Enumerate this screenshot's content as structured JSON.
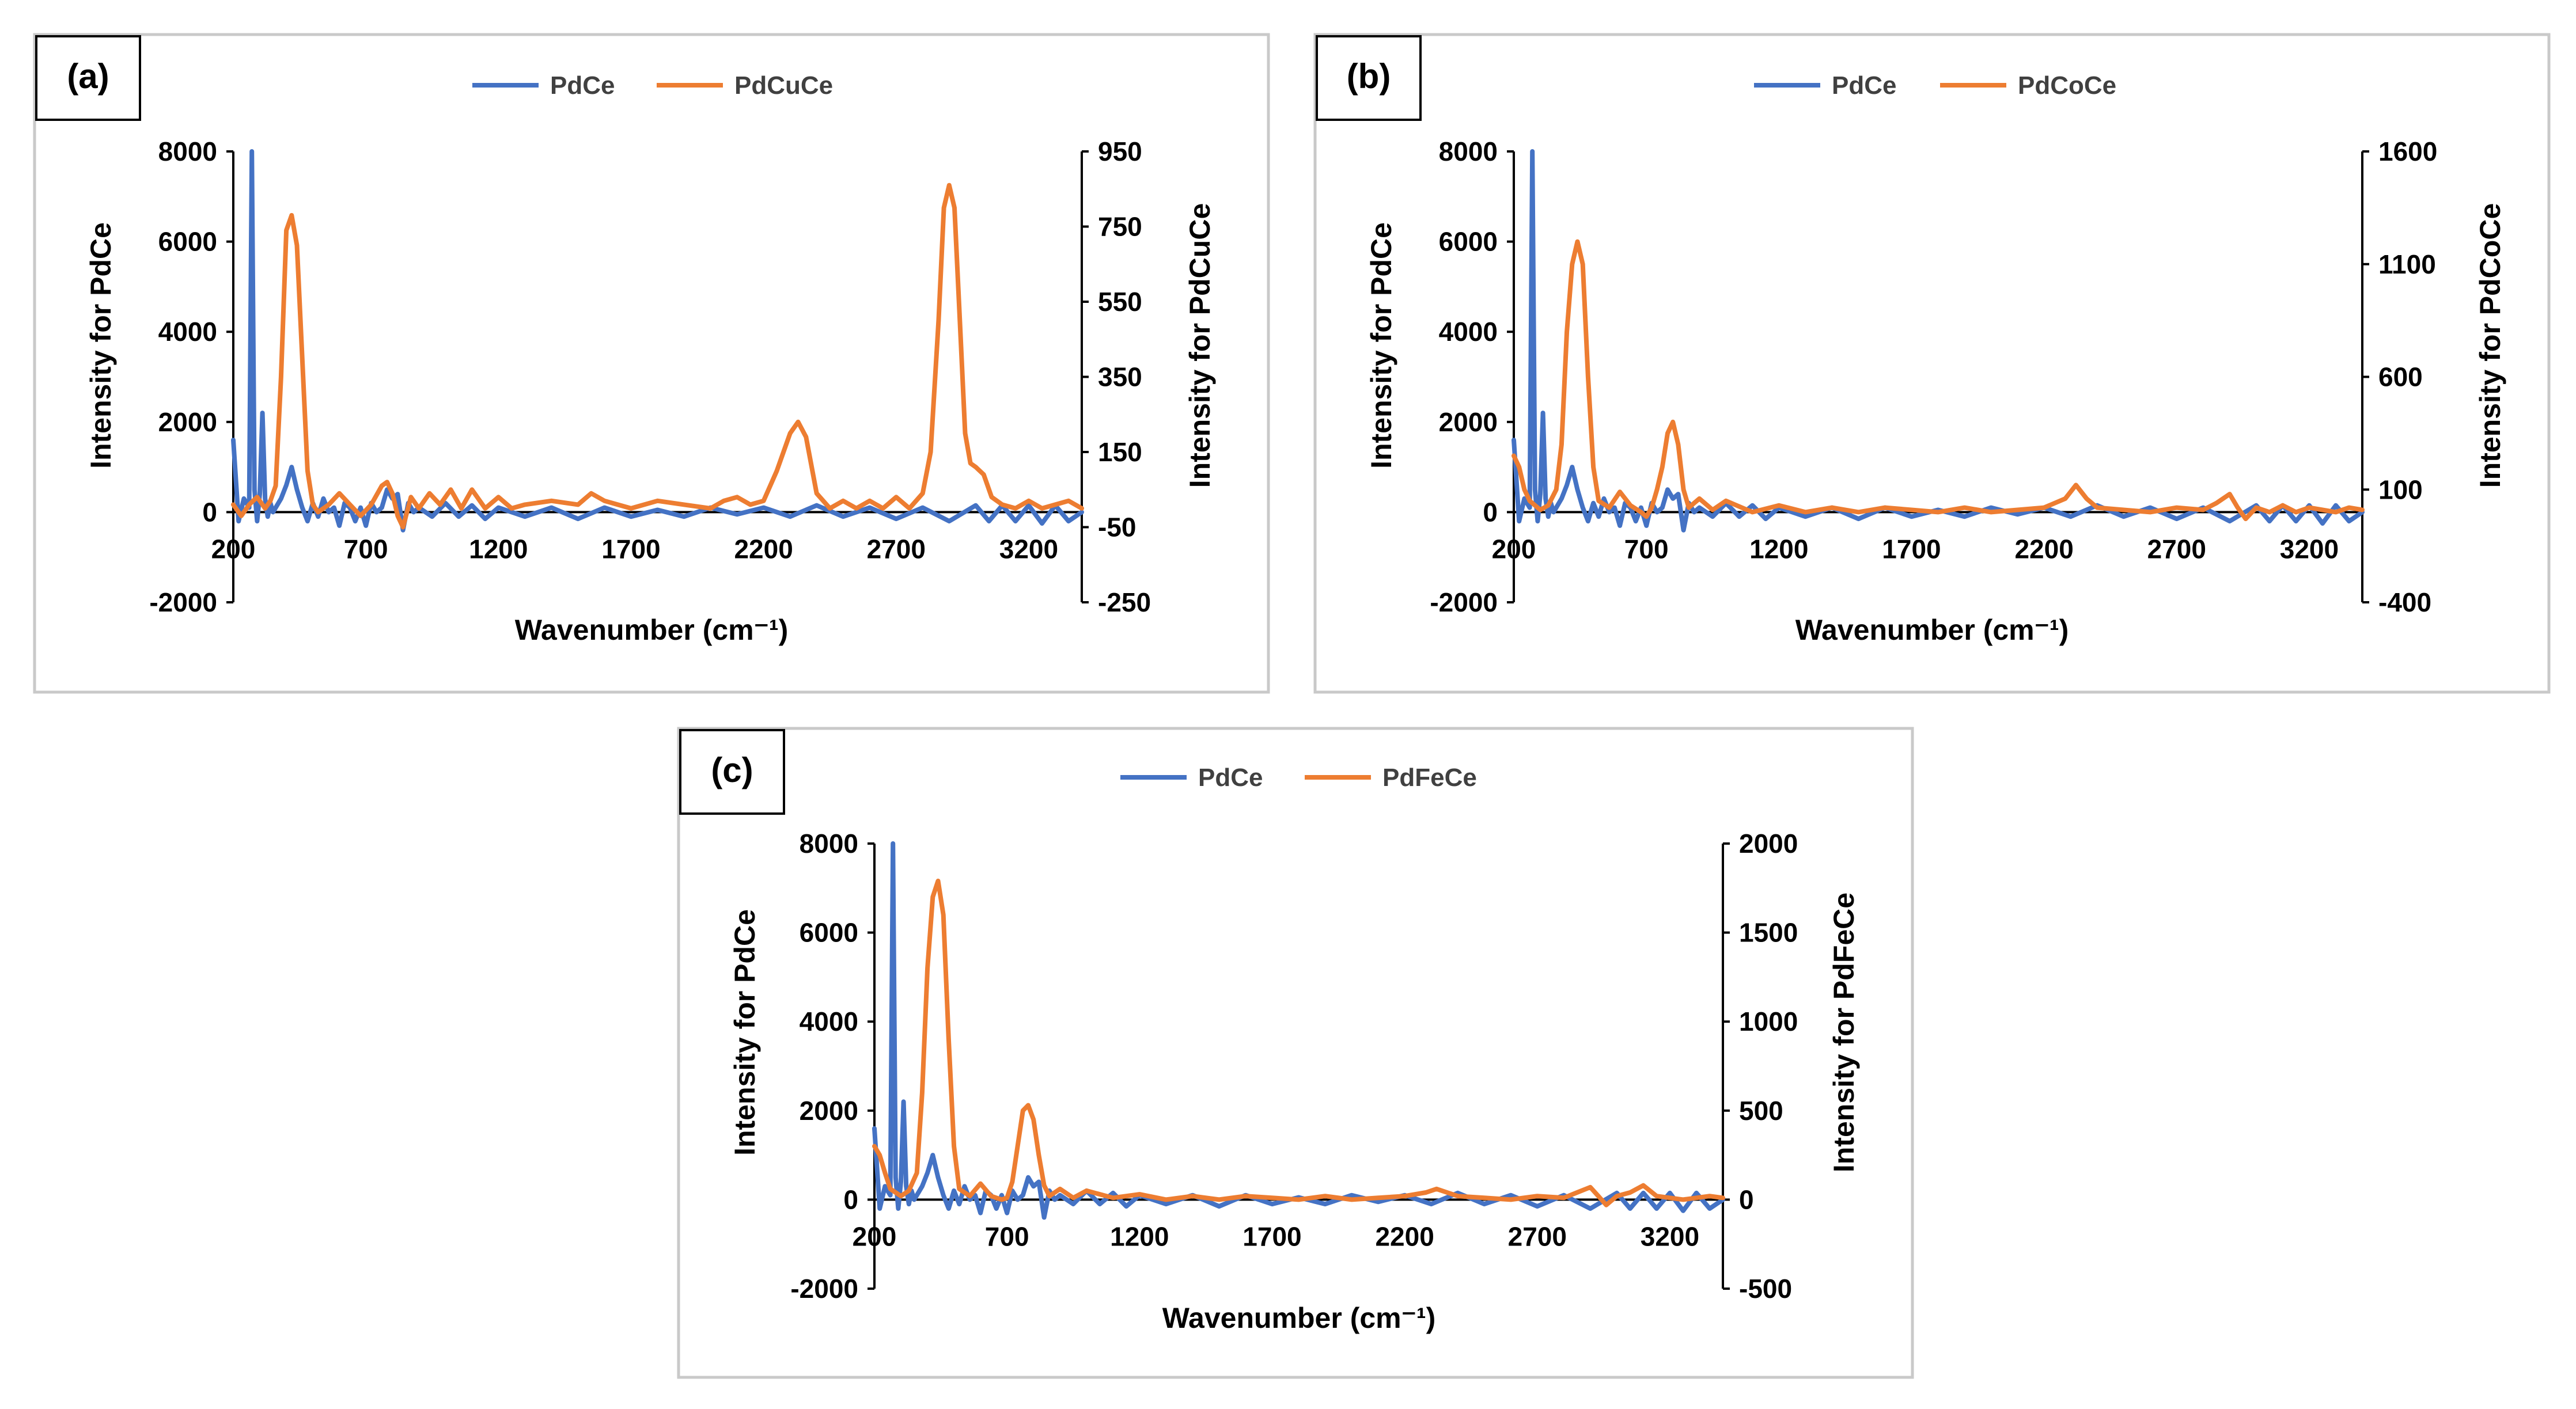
{
  "figure": {
    "description_none": ""
  },
  "chart_data": [
    {
      "type": "line",
      "panel_label": "(a)",
      "title": "",
      "xlabel": "Wavenumber (cm⁻¹)",
      "ylabel_left": "Intensity for PdCe",
      "ylabel_right": "Intensity for PdCuCe",
      "xlim": [
        200,
        3400
      ],
      "ylim_left": [
        -2000,
        8000
      ],
      "ylim_right": [
        -250,
        950
      ],
      "x_ticks": [
        200,
        700,
        1200,
        1700,
        2200,
        2700,
        3200
      ],
      "x_tick_labels": [
        "200",
        "700",
        "1200",
        "1700",
        "2200",
        "2700",
        "3200"
      ],
      "y_left_ticks": [
        8000,
        6000,
        4000,
        2000,
        0,
        -2000
      ],
      "y_left_tick_labels": [
        "8000",
        "6000",
        "4000",
        "2000",
        "0",
        "-2000"
      ],
      "y_right_ticks": [
        950,
        750,
        550,
        350,
        150,
        -50,
        -250
      ],
      "y_right_tick_labels": [
        "950",
        "750",
        "550",
        "350",
        "150",
        "-50",
        "-250"
      ],
      "legend_position": "top-center",
      "grid": false,
      "series": [
        {
          "name": "PdCe",
          "axis": "left",
          "color": "#4472c4",
          "x": [
            200,
            220,
            240,
            260,
            270,
            280,
            290,
            300,
            310,
            320,
            330,
            340,
            350,
            360,
            380,
            400,
            420,
            440,
            460,
            480,
            500,
            520,
            540,
            560,
            580,
            600,
            620,
            640,
            660,
            680,
            700,
            720,
            740,
            760,
            780,
            800,
            820,
            840,
            860,
            880,
            900,
            950,
            1000,
            1050,
            1100,
            1150,
            1200,
            1300,
            1400,
            1500,
            1600,
            1700,
            1800,
            1900,
            2000,
            2100,
            2200,
            2300,
            2400,
            2500,
            2600,
            2700,
            2800,
            2900,
            3000,
            3050,
            3100,
            3150,
            3200,
            3250,
            3300,
            3350,
            3400
          ],
          "values": [
            1600,
            -200,
            300,
            100,
            8000,
            500,
            -200,
            400,
            2200,
            300,
            -100,
            200,
            0,
            100,
            300,
            600,
            1000,
            500,
            100,
            -200,
            200,
            -100,
            300,
            0,
            100,
            -300,
            200,
            100,
            -200,
            100,
            -300,
            200,
            0,
            100,
            500,
            300,
            400,
            -400,
            200,
            0,
            100,
            -100,
            200,
            -100,
            150,
            -150,
            100,
            -100,
            100,
            -150,
            100,
            -100,
            50,
            -100,
            100,
            -50,
            100,
            -100,
            150,
            -100,
            100,
            -150,
            100,
            -200,
            150,
            -200,
            150,
            -200,
            150,
            -250,
            150,
            -200,
            0
          ]
        },
        {
          "name": "PdCuCe",
          "axis": "right",
          "color": "#ed7d31",
          "x": [
            200,
            230,
            260,
            290,
            320,
            340,
            360,
            380,
            400,
            420,
            440,
            460,
            480,
            500,
            520,
            560,
            600,
            640,
            680,
            720,
            760,
            780,
            800,
            820,
            840,
            870,
            900,
            940,
            980,
            1020,
            1060,
            1100,
            1150,
            1200,
            1250,
            1300,
            1400,
            1500,
            1550,
            1600,
            1650,
            1700,
            1800,
            1900,
            2000,
            2050,
            2100,
            2150,
            2200,
            2250,
            2300,
            2330,
            2360,
            2400,
            2450,
            2500,
            2550,
            2600,
            2650,
            2700,
            2750,
            2800,
            2830,
            2860,
            2880,
            2900,
            2920,
            2940,
            2960,
            2980,
            3000,
            3030,
            3060,
            3100,
            3150,
            3200,
            3250,
            3300,
            3350,
            3400
          ],
          "values": [
            10,
            -20,
            10,
            30,
            0,
            20,
            60,
            350,
            740,
            780,
            700,
            400,
            100,
            10,
            -10,
            10,
            40,
            10,
            -20,
            10,
            60,
            70,
            40,
            -20,
            -50,
            30,
            0,
            40,
            10,
            50,
            0,
            50,
            0,
            30,
            0,
            10,
            20,
            10,
            40,
            20,
            10,
            0,
            20,
            10,
            0,
            20,
            30,
            10,
            20,
            100,
            200,
            230,
            190,
            40,
            0,
            20,
            0,
            20,
            0,
            30,
            0,
            40,
            150,
            500,
            800,
            860,
            800,
            500,
            200,
            120,
            110,
            90,
            30,
            10,
            0,
            20,
            0,
            10,
            20,
            0
          ]
        }
      ]
    },
    {
      "type": "line",
      "panel_label": "(b)",
      "title": "",
      "xlabel": "Wavenumber (cm⁻¹)",
      "ylabel_left": "Intensity for PdCe",
      "ylabel_right": "Intensity for PdCoCe",
      "xlim": [
        200,
        3400
      ],
      "ylim_left": [
        -2000,
        8000
      ],
      "ylim_right": [
        -400,
        1600
      ],
      "x_ticks": [
        200,
        700,
        1200,
        1700,
        2200,
        2700,
        3200
      ],
      "x_tick_labels": [
        "200",
        "700",
        "1200",
        "1700",
        "2200",
        "2700",
        "3200"
      ],
      "y_left_ticks": [
        8000,
        6000,
        4000,
        2000,
        0,
        -2000
      ],
      "y_left_tick_labels": [
        "8000",
        "6000",
        "4000",
        "2000",
        "0",
        "-2000"
      ],
      "y_right_ticks": [
        1600,
        1100,
        600,
        100,
        -400
      ],
      "y_right_tick_labels": [
        "1600",
        "1100",
        "600",
        "100",
        "-400"
      ],
      "legend_position": "top-center",
      "grid": false,
      "series": [
        {
          "name": "PdCe",
          "axis": "left",
          "color": "#4472c4",
          "x": [
            200,
            220,
            240,
            260,
            270,
            280,
            290,
            300,
            310,
            320,
            330,
            340,
            350,
            360,
            380,
            400,
            420,
            440,
            460,
            480,
            500,
            520,
            540,
            560,
            580,
            600,
            620,
            640,
            660,
            680,
            700,
            720,
            740,
            760,
            780,
            800,
            820,
            840,
            860,
            880,
            900,
            950,
            1000,
            1050,
            1100,
            1150,
            1200,
            1300,
            1400,
            1500,
            1600,
            1700,
            1800,
            1900,
            2000,
            2100,
            2200,
            2300,
            2400,
            2500,
            2600,
            2700,
            2800,
            2900,
            3000,
            3050,
            3100,
            3150,
            3200,
            3250,
            3300,
            3350,
            3400
          ],
          "values": [
            1600,
            -200,
            300,
            100,
            8000,
            500,
            -200,
            400,
            2200,
            300,
            -100,
            200,
            0,
            100,
            300,
            600,
            1000,
            500,
            100,
            -200,
            200,
            -100,
            300,
            0,
            100,
            -300,
            200,
            100,
            -200,
            100,
            -300,
            200,
            0,
            100,
            500,
            300,
            400,
            -400,
            200,
            0,
            100,
            -100,
            200,
            -100,
            150,
            -150,
            100,
            -100,
            100,
            -150,
            100,
            -100,
            50,
            -100,
            100,
            -50,
            100,
            -100,
            150,
            -100,
            100,
            -150,
            100,
            -200,
            150,
            -200,
            150,
            -200,
            150,
            -250,
            150,
            -200,
            0
          ]
        },
        {
          "name": "PdCoCe",
          "axis": "right",
          "color": "#ed7d31",
          "x": [
            200,
            220,
            240,
            260,
            280,
            300,
            330,
            360,
            380,
            400,
            420,
            440,
            460,
            480,
            500,
            520,
            560,
            600,
            640,
            680,
            700,
            720,
            740,
            760,
            780,
            800,
            820,
            840,
            860,
            900,
            950,
            1000,
            1100,
            1200,
            1300,
            1400,
            1500,
            1600,
            1700,
            1800,
            1900,
            2000,
            2100,
            2200,
            2280,
            2320,
            2360,
            2400,
            2500,
            2600,
            2700,
            2800,
            2850,
            2900,
            2930,
            2960,
            3000,
            3050,
            3100,
            3150,
            3200,
            3250,
            3300,
            3350,
            3400
          ],
          "values": [
            250,
            200,
            100,
            50,
            30,
            10,
            30,
            100,
            300,
            800,
            1100,
            1200,
            1100,
            600,
            200,
            50,
            20,
            90,
            30,
            0,
            -20,
            20,
            100,
            200,
            350,
            400,
            300,
            100,
            20,
            60,
            10,
            50,
            0,
            30,
            0,
            20,
            0,
            20,
            10,
            0,
            20,
            0,
            10,
            20,
            60,
            120,
            60,
            20,
            10,
            0,
            20,
            10,
            40,
            80,
            20,
            -30,
            20,
            0,
            30,
            0,
            20,
            10,
            0,
            20,
            10
          ]
        }
      ]
    },
    {
      "type": "line",
      "panel_label": "(c)",
      "title": "",
      "xlabel": "Wavenumber (cm⁻¹)",
      "ylabel_left": "Intensity for PdCe",
      "ylabel_right": "Intensity for PdFeCe",
      "xlim": [
        200,
        3400
      ],
      "ylim_left": [
        -2000,
        8000
      ],
      "ylim_right": [
        -500,
        2000
      ],
      "x_ticks": [
        200,
        700,
        1200,
        1700,
        2200,
        2700,
        3200
      ],
      "x_tick_labels": [
        "200",
        "700",
        "1200",
        "1700",
        "2200",
        "2700",
        "3200"
      ],
      "y_left_ticks": [
        8000,
        6000,
        4000,
        2000,
        0,
        -2000
      ],
      "y_left_tick_labels": [
        "8000",
        "6000",
        "4000",
        "2000",
        "0",
        "-2000"
      ],
      "y_right_ticks": [
        2000,
        1500,
        1000,
        500,
        0,
        -500
      ],
      "y_right_tick_labels": [
        "2000",
        "1500",
        "1000",
        "500",
        "0",
        "-500"
      ],
      "legend_position": "top-center",
      "grid": false,
      "series": [
        {
          "name": "PdCe",
          "axis": "left",
          "color": "#4472c4",
          "x": [
            200,
            220,
            240,
            260,
            270,
            280,
            290,
            300,
            310,
            320,
            330,
            340,
            350,
            360,
            380,
            400,
            420,
            440,
            460,
            480,
            500,
            520,
            540,
            560,
            580,
            600,
            620,
            640,
            660,
            680,
            700,
            720,
            740,
            760,
            780,
            800,
            820,
            840,
            860,
            880,
            900,
            950,
            1000,
            1050,
            1100,
            1150,
            1200,
            1300,
            1400,
            1500,
            1600,
            1700,
            1800,
            1900,
            2000,
            2100,
            2200,
            2300,
            2400,
            2500,
            2600,
            2700,
            2800,
            2900,
            3000,
            3050,
            3100,
            3150,
            3200,
            3250,
            3300,
            3350,
            3400
          ],
          "values": [
            1600,
            -200,
            300,
            100,
            8000,
            500,
            -200,
            400,
            2200,
            300,
            -100,
            200,
            0,
            100,
            300,
            600,
            1000,
            500,
            100,
            -200,
            200,
            -100,
            300,
            0,
            100,
            -300,
            200,
            100,
            -200,
            100,
            -300,
            200,
            0,
            100,
            500,
            300,
            400,
            -400,
            200,
            0,
            100,
            -100,
            200,
            -100,
            150,
            -150,
            100,
            -100,
            100,
            -150,
            100,
            -100,
            50,
            -100,
            100,
            -50,
            100,
            -100,
            150,
            -100,
            100,
            -150,
            100,
            -200,
            150,
            -200,
            150,
            -200,
            150,
            -250,
            150,
            -200,
            0
          ]
        },
        {
          "name": "PdFeCe",
          "axis": "right",
          "color": "#ed7d31",
          "x": [
            200,
            220,
            240,
            260,
            280,
            300,
            330,
            360,
            380,
            400,
            420,
            440,
            460,
            480,
            500,
            520,
            560,
            600,
            640,
            680,
            700,
            720,
            740,
            760,
            780,
            800,
            820,
            840,
            860,
            900,
            950,
            1000,
            1100,
            1200,
            1300,
            1400,
            1500,
            1600,
            1700,
            1800,
            1900,
            2000,
            2100,
            2200,
            2280,
            2320,
            2360,
            2400,
            2500,
            2600,
            2700,
            2800,
            2850,
            2900,
            2930,
            2960,
            3000,
            3050,
            3100,
            3150,
            3200,
            3250,
            3300,
            3350,
            3400
          ],
          "values": [
            300,
            250,
            150,
            60,
            40,
            20,
            50,
            150,
            600,
            1300,
            1700,
            1790,
            1600,
            900,
            300,
            60,
            20,
            90,
            20,
            0,
            10,
            100,
            300,
            500,
            530,
            450,
            250,
            80,
            20,
            60,
            10,
            50,
            10,
            30,
            0,
            20,
            0,
            20,
            10,
            0,
            20,
            0,
            10,
            20,
            40,
            60,
            40,
            20,
            10,
            0,
            20,
            10,
            40,
            70,
            20,
            -30,
            20,
            40,
            80,
            20,
            10,
            0,
            10,
            20,
            10
          ]
        }
      ]
    }
  ]
}
